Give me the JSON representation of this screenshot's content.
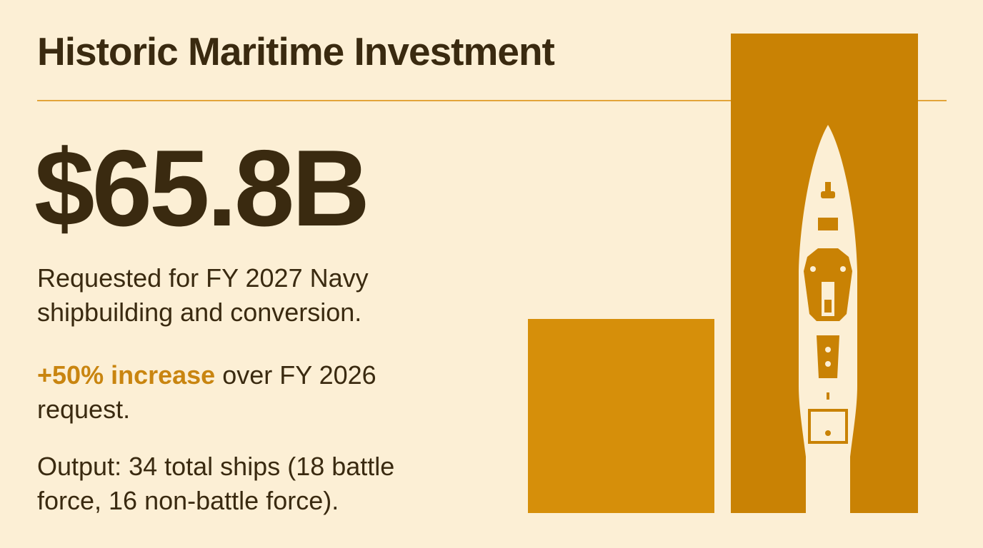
{
  "header": {
    "title": "Historic Maritime Investment"
  },
  "headline": "$65.8B",
  "paragraphs": [
    {
      "text": "Requested for FY 2027 Navy shipbuilding and conversion."
    },
    {
      "highlight": "+50% increase",
      "text": " over FY 2026 request."
    },
    {
      "text": "Output: 34 total ships (18 battle force, 16 non-battle force)."
    }
  ]
}
